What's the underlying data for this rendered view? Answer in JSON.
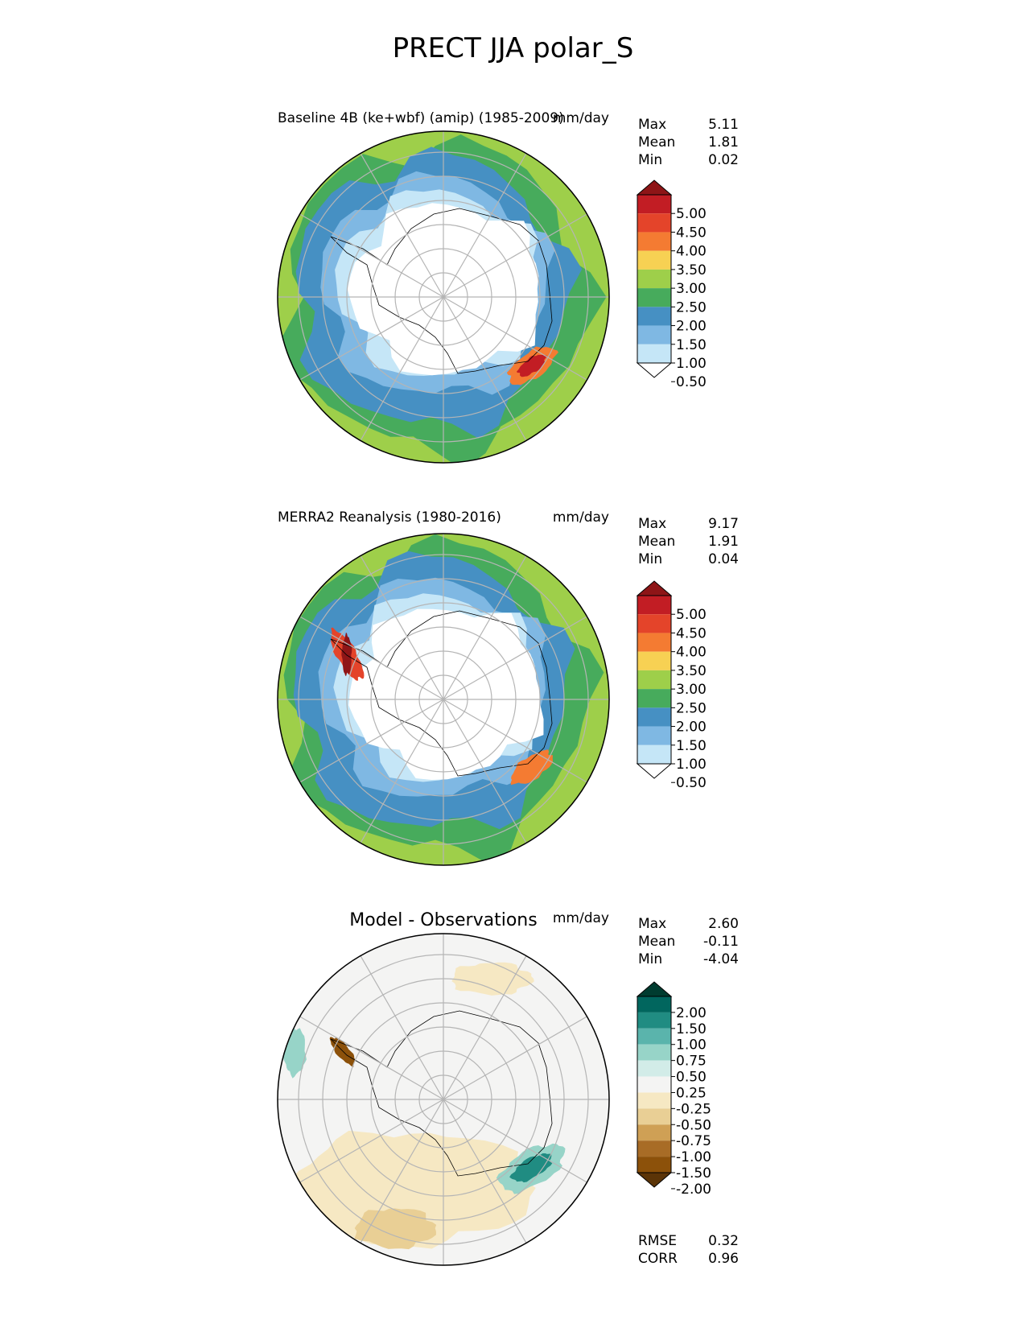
{
  "figure_title": "PRECT JJA polar_S",
  "chart_data": [
    {
      "type": "polar-contour-map",
      "title": "Baseline 4B (ke+wbf) (amip) (1985-2009)",
      "units": "mm/day",
      "stats": [
        {
          "label": "Max",
          "value": "5.11"
        },
        {
          "label": "Mean",
          "value": "1.81"
        },
        {
          "label": "Min",
          "value": "0.02"
        }
      ],
      "colorbar": {
        "levels": [
          "5.00",
          "4.50",
          "4.00",
          "3.50",
          "3.00",
          "2.50",
          "2.00",
          "1.50",
          "1.00",
          "0.50"
        ],
        "colors": [
          "#8e1517",
          "#c21d24",
          "#e4442a",
          "#f47b32",
          "#f7d153",
          "#9ecf4a",
          "#47ab5c",
          "#4690c3",
          "#7fb8e3",
          "#c5e6f7",
          "#ffffff"
        ],
        "extend": "both"
      },
      "zones": [
        {
          "range": "0.00-0.50",
          "location": "Antarctic interior"
        },
        {
          "range": "0.50-1.50",
          "location": "Antarctic coastal ring"
        },
        {
          "range": "1.50-2.00",
          "location": "inner Southern Ocean ring"
        },
        {
          "range": "2.00-3.00",
          "location": "outer Southern Ocean ring"
        },
        {
          "range": "3.00-3.50",
          "location": "mid-latitude edges"
        },
        {
          "range": "4.00-5.11",
          "location": "off East Antarctic coast"
        }
      ]
    },
    {
      "type": "polar-contour-map",
      "title": "MERRA2 Reanalysis (1980-2016)",
      "units": "mm/day",
      "stats": [
        {
          "label": "Max",
          "value": "9.17"
        },
        {
          "label": "Mean",
          "value": "1.91"
        },
        {
          "label": "Min",
          "value": "0.04"
        }
      ],
      "colorbar": {
        "levels": [
          "5.00",
          "4.50",
          "4.00",
          "3.50",
          "3.00",
          "2.50",
          "2.00",
          "1.50",
          "1.00",
          "0.50"
        ],
        "colors": [
          "#8e1517",
          "#c21d24",
          "#e4442a",
          "#f47b32",
          "#f7d153",
          "#9ecf4a",
          "#47ab5c",
          "#4690c3",
          "#7fb8e3",
          "#c5e6f7",
          "#ffffff"
        ],
        "extend": "both"
      },
      "zones": [
        {
          "range": "0.00-0.50",
          "location": "Antarctic interior"
        },
        {
          "range": "0.50-1.50",
          "location": "Antarctic coastal ring"
        },
        {
          "range": "1.50-2.00",
          "location": "inner Southern Ocean ring"
        },
        {
          "range": "2.00-3.00",
          "location": "outer Southern Ocean ring"
        },
        {
          "range": "3.00-3.50",
          "location": "mid-latitude edges"
        },
        {
          "range": "4.00-9.17",
          "location": "Antarctic Peninsula coast"
        }
      ]
    },
    {
      "type": "polar-contour-map",
      "title": "Model - Observations",
      "units": "mm/day",
      "stats": [
        {
          "label": "Max",
          "value": "2.60"
        },
        {
          "label": "Mean",
          "value": "-0.11"
        },
        {
          "label": "Min",
          "value": "-4.04"
        }
      ],
      "colorbar": {
        "levels": [
          "2.00",
          "1.50",
          "1.00",
          "0.75",
          "0.50",
          "0.25",
          "-0.25",
          "-0.50",
          "-0.75",
          "-1.00",
          "-1.50",
          "-2.00"
        ],
        "colors": [
          "#003c30",
          "#01665e",
          "#208c82",
          "#5ab4ac",
          "#97d4c8",
          "#d2ece8",
          "#f4f4f3",
          "#f6e8c3",
          "#e9cf95",
          "#cfa055",
          "#a86c26",
          "#8c510a",
          "#5b3407"
        ],
        "extend": "both"
      },
      "zones": [
        {
          "range": "-0.25-0.25",
          "location": "most of domain"
        },
        {
          "range": "-0.75--0.25",
          "location": "outer Southern Ocean"
        },
        {
          "range": "0.75-2.60",
          "location": "off East Antarctic coast"
        },
        {
          "range": "-4.04--1.00",
          "location": "Antarctic Peninsula coast"
        }
      ],
      "footer_stats": [
        {
          "label": "RMSE",
          "value": "0.32"
        },
        {
          "label": "CORR",
          "value": "0.96"
        }
      ]
    }
  ]
}
